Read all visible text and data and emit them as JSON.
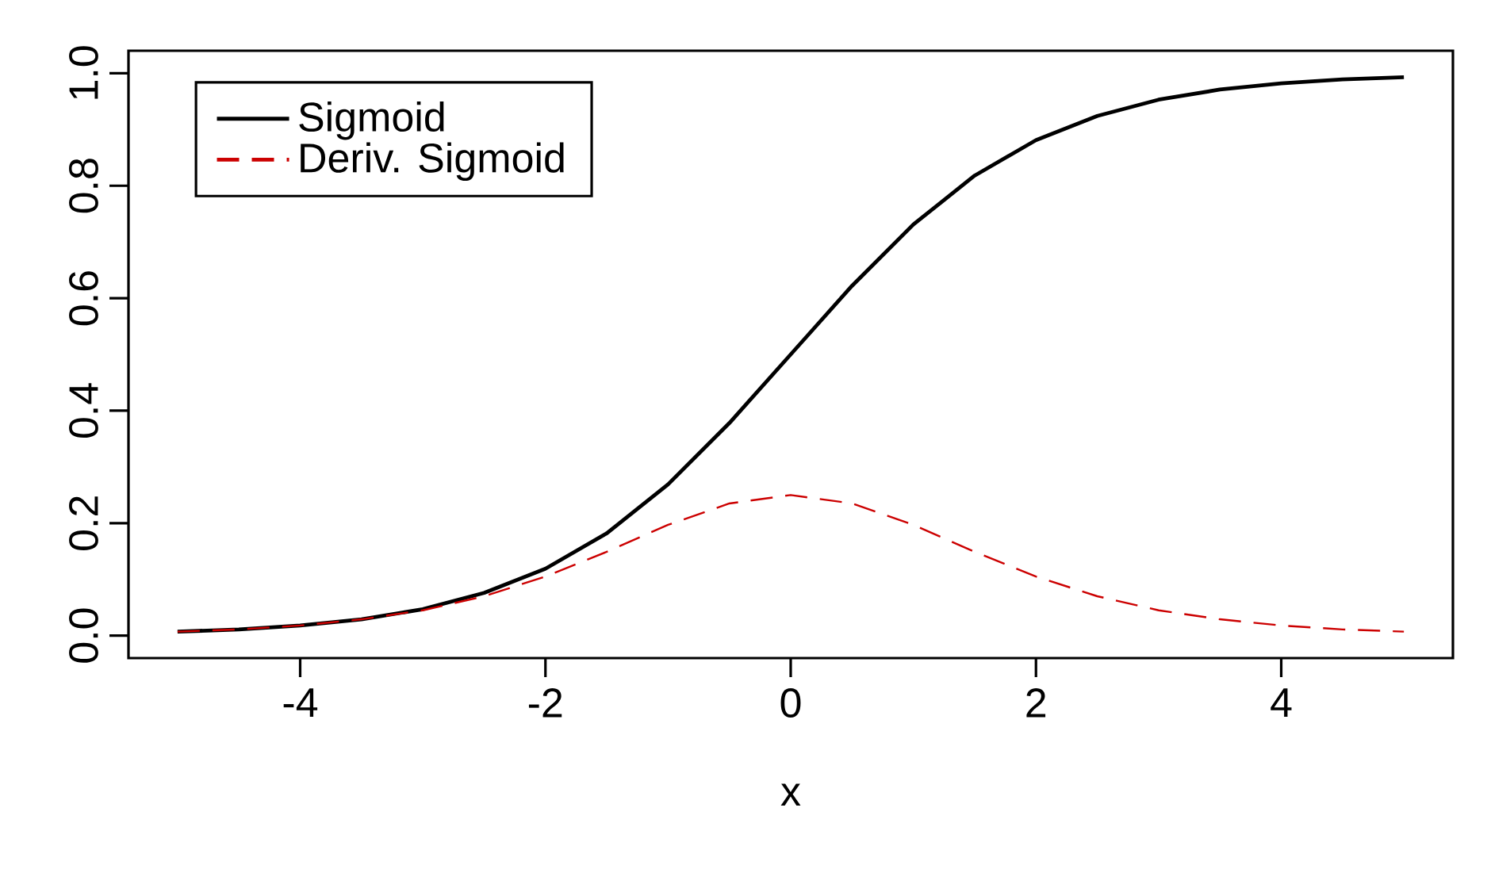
{
  "chart_data": {
    "type": "line",
    "xlabel": "x",
    "x": [
      -5,
      -4.5,
      -4,
      -3.5,
      -3,
      -2.5,
      -2,
      -1.5,
      -1,
      -0.5,
      0,
      0.5,
      1,
      1.5,
      2,
      2.5,
      3,
      3.5,
      4,
      4.5,
      5
    ],
    "series": [
      {
        "name": "Sigmoid",
        "color": "#000000",
        "line_style": "solid",
        "values": [
          0.007,
          0.011,
          0.018,
          0.029,
          0.047,
          0.076,
          0.119,
          0.182,
          0.269,
          0.378,
          0.5,
          0.622,
          0.731,
          0.818,
          0.881,
          0.924,
          0.953,
          0.971,
          0.982,
          0.989,
          0.993
        ]
      },
      {
        "name": "Deriv. Sigmoid",
        "color": "#cc0000",
        "line_style": "dashed",
        "values": [
          0.007,
          0.011,
          0.018,
          0.029,
          0.045,
          0.07,
          0.105,
          0.149,
          0.197,
          0.235,
          0.25,
          0.235,
          0.197,
          0.149,
          0.105,
          0.07,
          0.045,
          0.029,
          0.018,
          0.011,
          0.007
        ]
      }
    ],
    "xlim": [
      -5.4,
      5.4
    ],
    "ylim": [
      -0.04,
      1.04
    ],
    "xticks": [
      -4,
      -2,
      0,
      2,
      4
    ],
    "yticks": [
      {
        "value": 0,
        "label": "0.0"
      },
      {
        "value": 0.2,
        "label": "0.2"
      },
      {
        "value": 0.4,
        "label": "0.4"
      },
      {
        "value": 0.6,
        "label": "0.6"
      },
      {
        "value": 0.8,
        "label": "0.8"
      },
      {
        "value": 1,
        "label": "1.0"
      }
    ],
    "legend": "top left",
    "grid": false,
    "marker": "none"
  }
}
